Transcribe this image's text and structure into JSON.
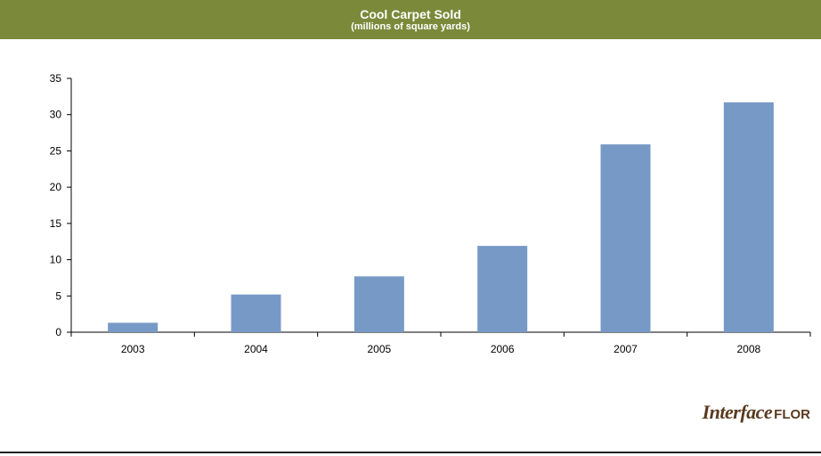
{
  "header": {
    "title": "Cool Carpet Sold",
    "subtitle": "(millions of square yards)"
  },
  "colors": {
    "header_bg": "#7a8a3a",
    "bar": "#7799c6",
    "logo": "#5a3a1e"
  },
  "logo": {
    "main": "Interface",
    "sub": "FLOR"
  },
  "chart_data": {
    "type": "bar",
    "title": "Cool Carpet Sold",
    "subtitle": "(millions of square yards)",
    "categories": [
      "2003",
      "2004",
      "2005",
      "2006",
      "2007",
      "2008"
    ],
    "values": [
      1.3,
      5.2,
      7.7,
      11.9,
      25.9,
      31.7
    ],
    "xlabel": "",
    "ylabel": "",
    "ylim": [
      0,
      35
    ],
    "yticks": [
      0,
      5,
      10,
      15,
      20,
      25,
      30,
      35
    ],
    "grid": false,
    "legend": "none"
  }
}
